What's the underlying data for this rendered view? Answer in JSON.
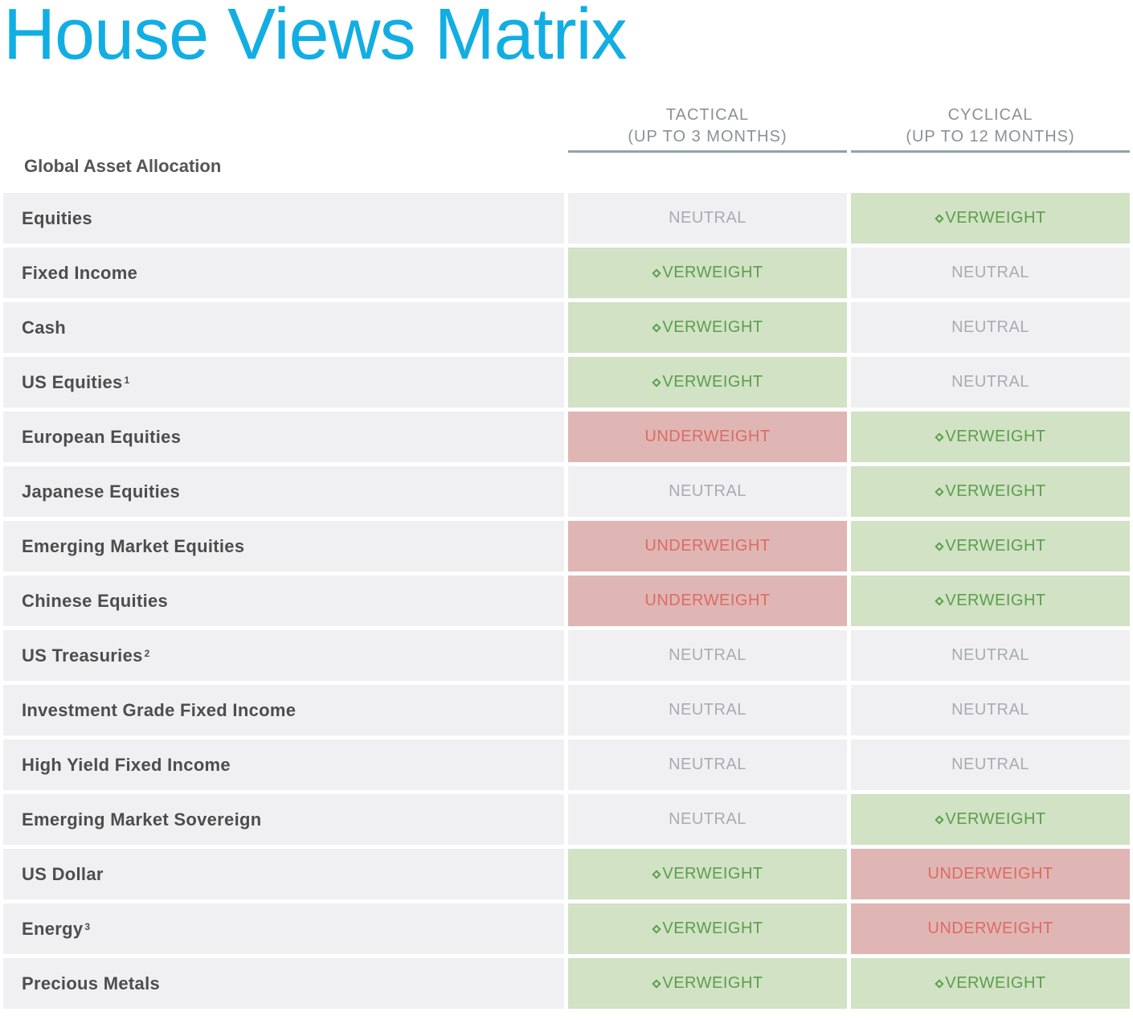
{
  "title": "House Views Matrix",
  "columns": {
    "tactical": {
      "line1": "TACTICAL",
      "line2": "(UP TO 3 MONTHS)"
    },
    "cyclical": {
      "line1": "CYCLICAL",
      "line2": "(UP TO 12 MONTHS)"
    }
  },
  "section_label": "Global Asset Allocation",
  "colors": {
    "title": "#12aee3",
    "overweight_bg": "#d1e2c5",
    "overweight_text": "#5c9e4c",
    "underweight_bg": "#dfb6b4",
    "underweight_text": "#dd6b63",
    "neutral_bg": "#f0f0f2",
    "neutral_text": "#a8acaf"
  },
  "rows": [
    {
      "asset": "Equities",
      "footnote": "",
      "tactical": "NEUTRAL",
      "cyclical": "OVERWEIGHT"
    },
    {
      "asset": "Fixed Income",
      "footnote": "",
      "tactical": "OVERWEIGHT",
      "cyclical": "NEUTRAL"
    },
    {
      "asset": "Cash",
      "footnote": "",
      "tactical": "OVERWEIGHT",
      "cyclical": "NEUTRAL"
    },
    {
      "asset": "US Equities",
      "footnote": "1",
      "tactical": "OVERWEIGHT",
      "cyclical": "NEUTRAL"
    },
    {
      "asset": "European Equities",
      "footnote": "",
      "tactical": "UNDERWEIGHT",
      "cyclical": "OVERWEIGHT"
    },
    {
      "asset": "Japanese Equities",
      "footnote": "",
      "tactical": "NEUTRAL",
      "cyclical": "OVERWEIGHT"
    },
    {
      "asset": "Emerging Market Equities",
      "footnote": "",
      "tactical": "UNDERWEIGHT",
      "cyclical": "OVERWEIGHT"
    },
    {
      "asset": "Chinese Equities",
      "footnote": "",
      "tactical": "UNDERWEIGHT",
      "cyclical": "OVERWEIGHT"
    },
    {
      "asset": "US Treasuries",
      "footnote": "2",
      "tactical": "NEUTRAL",
      "cyclical": "NEUTRAL"
    },
    {
      "asset": "Investment Grade Fixed Income",
      "footnote": "",
      "tactical": "NEUTRAL",
      "cyclical": "NEUTRAL"
    },
    {
      "asset": "High Yield Fixed Income",
      "footnote": "",
      "tactical": "NEUTRAL",
      "cyclical": "NEUTRAL"
    },
    {
      "asset": "Emerging Market Sovereign",
      "footnote": "",
      "tactical": "NEUTRAL",
      "cyclical": "OVERWEIGHT"
    },
    {
      "asset": "US Dollar",
      "footnote": "",
      "tactical": "OVERWEIGHT",
      "cyclical": "UNDERWEIGHT"
    },
    {
      "asset": "Energy",
      "footnote": "3",
      "tactical": "OVERWEIGHT",
      "cyclical": "UNDERWEIGHT"
    },
    {
      "asset": "Precious Metals",
      "footnote": "",
      "tactical": "OVERWEIGHT",
      "cyclical": "OVERWEIGHT"
    }
  ]
}
